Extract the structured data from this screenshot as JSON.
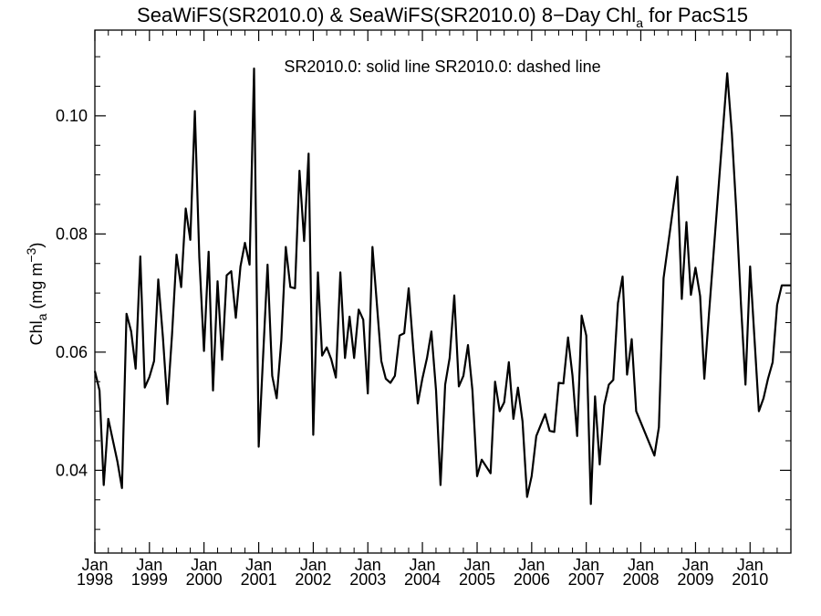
{
  "chart_data": {
    "type": "line",
    "title": "SeaWiFS(SR2010.0) & SeaWiFS(SR2010.0) 8−Day Chl",
    "title_sub": "a",
    "title_suffix": " for PacS15",
    "annotation": "SR2010.0: solid line   SR2010.0: dashed line",
    "ylabel": "Chl",
    "ylabel_sub": "a",
    "ylabel_units": " (mg m",
    "ylabel_sup": "−3",
    "ylabel_close": ")",
    "xlim": [
      "1998-01-01",
      "2010-10-01"
    ],
    "ylim": [
      0.026,
      0.1145
    ],
    "y_ticks": [
      0.04,
      0.06,
      0.08,
      0.1
    ],
    "y_tick_labels": [
      "0.04",
      "0.06",
      "0.08",
      "0.10"
    ],
    "x_ticks": [
      "1998-01-01",
      "1999-01-01",
      "2000-01-01",
      "2001-01-01",
      "2002-01-01",
      "2003-01-01",
      "2004-01-01",
      "2005-01-01",
      "2006-01-01",
      "2007-01-01",
      "2008-01-01",
      "2009-01-01",
      "2010-01-01"
    ],
    "x_tick_month": [
      "Jan",
      "Jan",
      "Jan",
      "Jan",
      "Jan",
      "Jan",
      "Jan",
      "Jan",
      "Jan",
      "Jan",
      "Jan",
      "Jan",
      "Jan"
    ],
    "x_tick_year": [
      "1998",
      "1999",
      "2000",
      "2001",
      "2002",
      "2003",
      "2004",
      "2005",
      "2006",
      "2007",
      "2008",
      "2009",
      "2010"
    ],
    "grid": false,
    "series": [
      {
        "style": "solid",
        "color": "#000000",
        "points": [
          [
            "1998-01-01",
            0.0568
          ],
          [
            "1998-02-01",
            0.0535
          ],
          [
            "1998-03-01",
            0.0375
          ],
          [
            "1998-04-01",
            0.0487
          ],
          [
            "1998-06-01",
            0.0415
          ],
          [
            "1998-07-01",
            0.037
          ],
          [
            "1998-08-01",
            0.0665
          ],
          [
            "1998-09-01",
            0.0635
          ],
          [
            "1998-10-01",
            0.0572
          ],
          [
            "1998-11-01",
            0.0762
          ],
          [
            "1998-12-01",
            0.054
          ],
          [
            "1999-01-01",
            0.0558
          ],
          [
            "1999-02-01",
            0.0585
          ],
          [
            "1999-03-01",
            0.0723
          ],
          [
            "1999-04-01",
            0.0625
          ],
          [
            "1999-05-01",
            0.0512
          ],
          [
            "1999-06-01",
            0.063
          ],
          [
            "1999-07-01",
            0.0765
          ],
          [
            "1999-08-01",
            0.071
          ],
          [
            "1999-09-01",
            0.0843
          ],
          [
            "1999-10-01",
            0.079
          ],
          [
            "1999-11-01",
            0.1008
          ],
          [
            "1999-12-01",
            0.076
          ],
          [
            "2000-01-01",
            0.0602
          ],
          [
            "2000-02-01",
            0.077
          ],
          [
            "2000-03-01",
            0.0535
          ],
          [
            "2000-04-01",
            0.072
          ],
          [
            "2000-05-01",
            0.0587
          ],
          [
            "2000-06-01",
            0.073
          ],
          [
            "2000-07-01",
            0.0737
          ],
          [
            "2000-08-01",
            0.0658
          ],
          [
            "2000-09-01",
            0.0745
          ],
          [
            "2000-10-01",
            0.0785
          ],
          [
            "2000-11-01",
            0.0748
          ],
          [
            "2000-12-01",
            0.108
          ],
          [
            "2001-01-01",
            0.044
          ],
          [
            "2001-03-01",
            0.0748
          ],
          [
            "2001-04-01",
            0.056
          ],
          [
            "2001-05-01",
            0.0522
          ],
          [
            "2001-06-01",
            0.062
          ],
          [
            "2001-07-01",
            0.0778
          ],
          [
            "2001-08-01",
            0.071
          ],
          [
            "2001-09-01",
            0.0708
          ],
          [
            "2001-10-01",
            0.0907
          ],
          [
            "2001-11-01",
            0.0788
          ],
          [
            "2001-12-01",
            0.0936
          ],
          [
            "2002-01-01",
            0.046
          ],
          [
            "2002-02-01",
            0.0735
          ],
          [
            "2002-03-01",
            0.0594
          ],
          [
            "2002-04-01",
            0.0608
          ],
          [
            "2002-05-01",
            0.0588
          ],
          [
            "2002-06-01",
            0.0557
          ],
          [
            "2002-07-01",
            0.0735
          ],
          [
            "2002-08-01",
            0.059
          ],
          [
            "2002-09-01",
            0.066
          ],
          [
            "2002-10-01",
            0.059
          ],
          [
            "2002-11-01",
            0.0672
          ],
          [
            "2002-12-01",
            0.0655
          ],
          [
            "2003-01-01",
            0.053
          ],
          [
            "2003-02-01",
            0.0778
          ],
          [
            "2003-04-01",
            0.0585
          ],
          [
            "2003-05-01",
            0.0555
          ],
          [
            "2003-06-01",
            0.0548
          ],
          [
            "2003-07-01",
            0.056
          ],
          [
            "2003-08-01",
            0.0628
          ],
          [
            "2003-09-01",
            0.0632
          ],
          [
            "2003-10-01",
            0.0708
          ],
          [
            "2003-11-01",
            0.0605
          ],
          [
            "2003-12-01",
            0.0513
          ],
          [
            "2004-01-01",
            0.0555
          ],
          [
            "2004-02-01",
            0.059
          ],
          [
            "2004-03-01",
            0.0635
          ],
          [
            "2004-04-01",
            0.0535
          ],
          [
            "2004-05-01",
            0.0375
          ],
          [
            "2004-06-01",
            0.0545
          ],
          [
            "2004-07-01",
            0.059
          ],
          [
            "2004-08-01",
            0.0696
          ],
          [
            "2004-09-01",
            0.0542
          ],
          [
            "2004-10-01",
            0.056
          ],
          [
            "2004-11-01",
            0.0612
          ],
          [
            "2004-12-01",
            0.0535
          ],
          [
            "2005-01-01",
            0.039
          ],
          [
            "2005-02-01",
            0.0418
          ],
          [
            "2005-04-01",
            0.0395
          ],
          [
            "2005-05-01",
            0.055
          ],
          [
            "2005-06-01",
            0.05
          ],
          [
            "2005-07-01",
            0.0515
          ],
          [
            "2005-08-01",
            0.0583
          ],
          [
            "2005-09-01",
            0.0487
          ],
          [
            "2005-10-01",
            0.054
          ],
          [
            "2005-11-01",
            0.0483
          ],
          [
            "2005-12-01",
            0.0355
          ],
          [
            "2006-01-01",
            0.039
          ],
          [
            "2006-02-01",
            0.0458
          ],
          [
            "2006-04-01",
            0.0495
          ],
          [
            "2006-05-01",
            0.0467
          ],
          [
            "2006-06-01",
            0.0465
          ],
          [
            "2006-07-01",
            0.0548
          ],
          [
            "2006-08-01",
            0.0547
          ],
          [
            "2006-09-01",
            0.0625
          ],
          [
            "2006-10-01",
            0.056
          ],
          [
            "2006-11-01",
            0.0458
          ],
          [
            "2006-12-01",
            0.0662
          ],
          [
            "2007-01-01",
            0.0628
          ],
          [
            "2007-02-01",
            0.0343
          ],
          [
            "2007-03-01",
            0.0525
          ],
          [
            "2007-04-01",
            0.041
          ],
          [
            "2007-05-01",
            0.051
          ],
          [
            "2007-06-01",
            0.0545
          ],
          [
            "2007-07-01",
            0.0553
          ],
          [
            "2007-08-01",
            0.0683
          ],
          [
            "2007-09-01",
            0.0728
          ],
          [
            "2007-10-01",
            0.0562
          ],
          [
            "2007-11-01",
            0.0622
          ],
          [
            "2007-12-01",
            0.05
          ],
          [
            "2008-04-01",
            0.0425
          ],
          [
            "2008-05-01",
            0.0473
          ],
          [
            "2008-06-01",
            0.0725
          ],
          [
            "2008-09-01",
            0.0897
          ],
          [
            "2008-10-01",
            0.069
          ],
          [
            "2008-11-01",
            0.082
          ],
          [
            "2008-12-01",
            0.0697
          ],
          [
            "2009-01-01",
            0.0743
          ],
          [
            "2009-02-01",
            0.0695
          ],
          [
            "2009-03-01",
            0.0555
          ],
          [
            "2009-04-01",
            0.0665
          ],
          [
            "2009-08-01",
            0.1072
          ],
          [
            "2009-09-01",
            0.097
          ],
          [
            "2009-10-01",
            0.0838
          ],
          [
            "2009-11-01",
            0.068
          ],
          [
            "2009-12-01",
            0.0545
          ],
          [
            "2010-01-01",
            0.0745
          ],
          [
            "2010-03-01",
            0.05
          ],
          [
            "2010-04-01",
            0.0522
          ],
          [
            "2010-05-01",
            0.0555
          ],
          [
            "2010-06-01",
            0.0583
          ],
          [
            "2010-07-01",
            0.068
          ],
          [
            "2010-08-01",
            0.0713
          ],
          [
            "2010-10-01",
            0.0713
          ]
        ]
      }
    ]
  }
}
